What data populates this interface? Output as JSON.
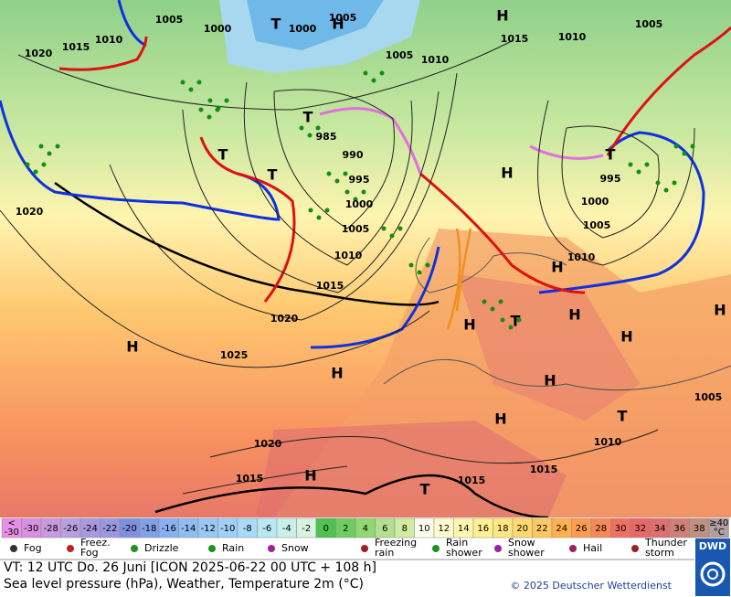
{
  "map": {
    "isobar_labels": [
      "1005",
      "1000",
      "1005",
      "1015",
      "1010",
      "1020",
      "1000",
      "1005",
      "1010",
      "1015",
      "1010",
      "1005",
      "985",
      "990",
      "995",
      "1000",
      "1005",
      "1010",
      "1015",
      "1020",
      "1025",
      "1020",
      "995",
      "1000",
      "1005",
      "1010",
      "1005",
      "1010",
      "1020",
      "1015",
      "1015",
      "1015"
    ],
    "pressure_centers": [
      "H",
      "T",
      "H",
      "T",
      "T",
      "T",
      "H",
      "T",
      "H",
      "H",
      "H",
      "T",
      "H",
      "H",
      "H",
      "H",
      "H",
      "T",
      "H",
      "T",
      "H"
    ]
  },
  "colorbar": {
    "cells": [
      {
        "top": "<",
        "label": "-30",
        "color": "#e890e8"
      },
      {
        "label": "-30",
        "color": "#d890e0"
      },
      {
        "label": "-28",
        "color": "#c898e0"
      },
      {
        "label": "-26",
        "color": "#b8a0e0"
      },
      {
        "label": "-24",
        "color": "#a898e0"
      },
      {
        "label": "-22",
        "color": "#9898e0"
      },
      {
        "label": "-20",
        "color": "#8090e0"
      },
      {
        "label": "-18",
        "color": "#80a0e8"
      },
      {
        "label": "-16",
        "color": "#88b0f0"
      },
      {
        "label": "-14",
        "color": "#90bcf0"
      },
      {
        "label": "-12",
        "color": "#98c8f4"
      },
      {
        "label": "-10",
        "color": "#a0d0f8"
      },
      {
        "label": "-8",
        "color": "#a8dcf8"
      },
      {
        "label": "-6",
        "color": "#b8e8f4"
      },
      {
        "label": "-4",
        "color": "#c8f0e8"
      },
      {
        "label": "-2",
        "color": "#d8f4e0"
      },
      {
        "label": "0",
        "color": "#50c050"
      },
      {
        "label": "2",
        "color": "#70cc60"
      },
      {
        "label": "4",
        "color": "#90d870"
      },
      {
        "label": "6",
        "color": "#b0e090"
      },
      {
        "label": "8",
        "color": "#d0eca0"
      },
      {
        "label": "10",
        "color": "#fffff0"
      },
      {
        "label": "12",
        "color": "#fffcd0"
      },
      {
        "label": "14",
        "color": "#fff8b0"
      },
      {
        "label": "16",
        "color": "#fff090"
      },
      {
        "label": "18",
        "color": "#ffe880"
      },
      {
        "label": "20",
        "color": "#ffd870"
      },
      {
        "label": "22",
        "color": "#ffc860"
      },
      {
        "label": "24",
        "color": "#ffb050"
      },
      {
        "label": "26",
        "color": "#ff9c50"
      },
      {
        "label": "28",
        "color": "#f88858"
      },
      {
        "label": "30",
        "color": "#f07060"
      },
      {
        "label": "32",
        "color": "#e86868"
      },
      {
        "label": "34",
        "color": "#e07070"
      },
      {
        "label": "36",
        "color": "#d08078"
      },
      {
        "label": "38",
        "color": "#c09080"
      },
      {
        "top": "≥40",
        "label": "°C",
        "color": "#b0a0a0"
      }
    ]
  },
  "legend": {
    "items": [
      {
        "label": "Fog",
        "color": "#333"
      },
      {
        "label": "Freez.",
        "label2": "Fog",
        "color": "#c02020"
      },
      {
        "label": "Drizzle",
        "color": "#209020"
      },
      {
        "label": "Rain",
        "color": "#209020"
      },
      {
        "label": "Snow",
        "color": "#a020a0"
      },
      {
        "label": "Freezing",
        "label2": "rain",
        "color": "#a02020"
      },
      {
        "label": "Rain",
        "label2": "shower",
        "color": "#209020"
      },
      {
        "label": "Snow",
        "label2": "shower",
        "color": "#a020a0"
      },
      {
        "label": "Hail",
        "color": "#a02060"
      },
      {
        "label": "Thunder",
        "label2": "storm",
        "color": "#a02020"
      }
    ]
  },
  "footer": {
    "valid_time": "VT: 12 UTC Do.  26 Juni [ICON 2025-06-22  00 UTC + 108 h]",
    "product": "Sea level pressure (hPa), Weather, Temperature 2m (°C)",
    "copyright": "© 2025 Deutscher Wetterdienst",
    "logo": "DWD"
  }
}
